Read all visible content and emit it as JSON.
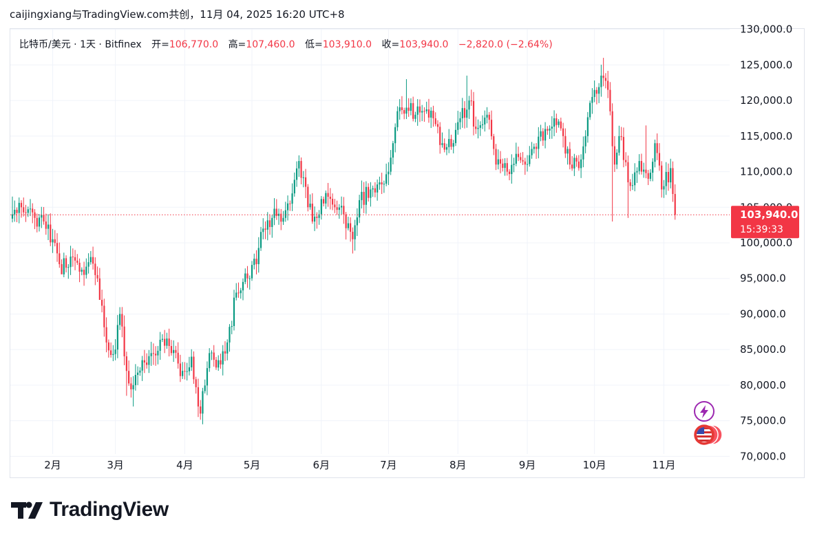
{
  "header": {
    "title": "caijingxiang与TradingView.com共创，11月 04, 2025 16:20 UTC+8"
  },
  "legend": {
    "symbol": "比特币/美元 · 1天 · Bitfinex",
    "open_label": "开=",
    "open_value": "106,770.0",
    "high_label": "高=",
    "high_value": "107,460.0",
    "low_label": "低=",
    "low_value": "103,910.0",
    "close_label": "收=",
    "close_value": "103,940.0",
    "change": "−2,820.0 (−2.64%)"
  },
  "price_tag": {
    "price": "103,940.0",
    "countdown": "15:39:33"
  },
  "branding": {
    "logo_text": "TradingView"
  },
  "colors": {
    "up": "#089981",
    "down": "#f23645",
    "grid": "#f0f3fa",
    "text": "#131722",
    "accent_purple": "#9c27b0"
  },
  "icons": {
    "event1": "lightning-icon",
    "event2": "us-flag-icon"
  },
  "chart_data": {
    "type": "candlestick",
    "title": "比特币/美元 · 1天 · Bitfinex",
    "ylim": [
      68000,
      132000
    ],
    "yticks": [
      {
        "value": 70000,
        "label": "70,000.0"
      },
      {
        "value": 75000,
        "label": "75,000.0"
      },
      {
        "value": 80000,
        "label": "80,000.0"
      },
      {
        "value": 85000,
        "label": "85,000.0"
      },
      {
        "value": 90000,
        "label": "90,000.0"
      },
      {
        "value": 95000,
        "label": "95,000.0"
      },
      {
        "value": 100000,
        "label": "100,000.0"
      },
      {
        "value": 105000,
        "label": "105,000.0"
      },
      {
        "value": 110000,
        "label": "110,000.0"
      },
      {
        "value": 115000,
        "label": "115,000.0"
      },
      {
        "value": 120000,
        "label": "120,000.0"
      },
      {
        "value": 125000,
        "label": "125,000.0"
      },
      {
        "value": 130000,
        "label": "130,000.0"
      }
    ],
    "start_index": -18,
    "end_index": 291,
    "xticks": [
      {
        "index": 0,
        "label": "2月"
      },
      {
        "index": 28,
        "label": "3月"
      },
      {
        "index": 59,
        "label": "4月"
      },
      {
        "index": 89,
        "label": "5月"
      },
      {
        "index": 120,
        "label": "6月"
      },
      {
        "index": 150,
        "label": "7月"
      },
      {
        "index": 181,
        "label": "8月"
      },
      {
        "index": 212,
        "label": "9月"
      },
      {
        "index": 242,
        "label": "10月"
      },
      {
        "index": 273,
        "label": "11月"
      }
    ],
    "last_price": 103940,
    "anchors": [
      [
        -18,
        104000
      ],
      [
        -14,
        105000
      ],
      [
        -8,
        103500
      ],
      [
        -4,
        103000
      ],
      [
        0,
        100500
      ],
      [
        3,
        97000
      ],
      [
        6,
        96500
      ],
      [
        10,
        97500
      ],
      [
        14,
        95500
      ],
      [
        17,
        98000
      ],
      [
        20,
        95000
      ],
      [
        24,
        86000
      ],
      [
        28,
        85000
      ],
      [
        30,
        90000
      ],
      [
        33,
        82000
      ],
      [
        36,
        80000
      ],
      [
        40,
        83500
      ],
      [
        44,
        84500
      ],
      [
        49,
        86500
      ],
      [
        53,
        84500
      ],
      [
        58,
        82000
      ],
      [
        62,
        84000
      ],
      [
        66,
        76000
      ],
      [
        70,
        84500
      ],
      [
        74,
        83500
      ],
      [
        78,
        86000
      ],
      [
        82,
        93000
      ],
      [
        87,
        95000
      ],
      [
        91,
        97000
      ],
      [
        94,
        102000
      ],
      [
        98,
        103500
      ],
      [
        103,
        103500
      ],
      [
        106,
        105500
      ],
      [
        110,
        111500
      ],
      [
        114,
        105000
      ],
      [
        118,
        103500
      ],
      [
        122,
        107000
      ],
      [
        126,
        105000
      ],
      [
        130,
        104000
      ],
      [
        134,
        100500
      ],
      [
        137,
        106000
      ],
      [
        142,
        107500
      ],
      [
        146,
        108500
      ],
      [
        150,
        110000
      ],
      [
        154,
        118500
      ],
      [
        158,
        119000
      ],
      [
        162,
        118000
      ],
      [
        166,
        118500
      ],
      [
        170,
        117500
      ],
      [
        174,
        114000
      ],
      [
        178,
        113500
      ],
      [
        182,
        117500
      ],
      [
        186,
        120000
      ],
      [
        189,
        116000
      ],
      [
        194,
        118000
      ],
      [
        198,
        111000
      ],
      [
        203,
        110000
      ],
      [
        207,
        112500
      ],
      [
        211,
        111000
      ],
      [
        215,
        113500
      ],
      [
        220,
        116000
      ],
      [
        224,
        117500
      ],
      [
        228,
        115000
      ],
      [
        231,
        111000
      ],
      [
        235,
        110500
      ],
      [
        238,
        115000
      ],
      [
        241,
        120500
      ],
      [
        245,
        123500
      ],
      [
        248,
        121500
      ],
      [
        251,
        111000
      ],
      [
        253,
        115000
      ],
      [
        258,
        108000
      ],
      [
        262,
        111500
      ],
      [
        266,
        109000
      ],
      [
        269,
        114000
      ],
      [
        272,
        107500
      ],
      [
        276,
        110500
      ],
      [
        278,
        103940
      ]
    ],
    "wick_overrides": [
      {
        "index": -18,
        "high": 106500
      },
      {
        "index": 4,
        "low": 96000
      },
      {
        "index": 21,
        "low": 92000
      },
      {
        "index": 33,
        "low": 78500
      },
      {
        "index": 36,
        "low": 77000
      },
      {
        "index": 67,
        "low": 74500
      },
      {
        "index": 111,
        "high": 112000
      },
      {
        "index": 134,
        "low": 98500
      },
      {
        "index": 158,
        "high": 123000
      },
      {
        "index": 185,
        "high": 123500
      },
      {
        "index": 223,
        "high": 117800
      },
      {
        "index": 246,
        "high": 126000
      },
      {
        "index": 250,
        "low": 103000
      },
      {
        "index": 257,
        "low": 103500
      },
      {
        "index": 265,
        "high": 116500
      }
    ]
  }
}
